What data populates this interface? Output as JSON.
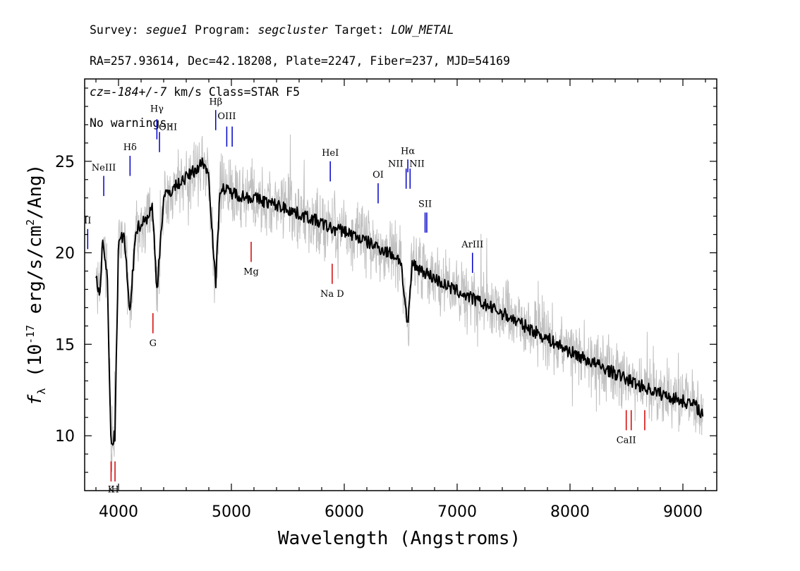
{
  "header": {
    "line1": {
      "survey_label": "Survey: ",
      "survey": "segue1",
      "program_label": " Program: ",
      "program": "segcluster",
      "target_label": " Target: ",
      "target": "LOW_METAL"
    },
    "line2": "RA=257.93614, Dec=42.18208, Plate=2247, Fiber=237, MJD=54169",
    "line3": {
      "cz": "cz=",
      "value": "-184+/-7",
      "rest": " km/s Class=STAR F5"
    },
    "line4": "No warnings."
  },
  "chart_data": {
    "type": "line",
    "xlabel": "Wavelength (Angstroms)",
    "ylabel": "f_λ (10^-17 erg/s/cm²/Ang)",
    "ylabel_parts": {
      "f": "f",
      "sub": "λ",
      "pre": " (10",
      "exp": "-17",
      "mid": " erg/s/cm",
      "exp2": "2",
      "post": "/Ang)"
    },
    "xlim": [
      3700,
      9300
    ],
    "ylim": [
      7,
      29.5
    ],
    "xticks": [
      4000,
      5000,
      6000,
      7000,
      8000,
      9000
    ],
    "yticks": [
      10,
      15,
      20,
      25
    ],
    "series": [
      {
        "style": "smoothed-flux",
        "color": "#000000",
        "x": [
          3800,
          3830,
          3860,
          3900,
          3933,
          3968,
          4000,
          4050,
          4101,
          4150,
          4200,
          4250,
          4300,
          4340,
          4400,
          4450,
          4500,
          4550,
          4600,
          4650,
          4700,
          4750,
          4800,
          4861,
          4900,
          4950,
          5000,
          5100,
          5200,
          5300,
          5400,
          5500,
          5600,
          5700,
          5800,
          5893,
          6000,
          6100,
          6200,
          6300,
          6400,
          6500,
          6563,
          6600,
          6700,
          6800,
          6900,
          7000,
          7200,
          7400,
          7600,
          7800,
          8000,
          8200,
          8400,
          8600,
          8800,
          9000,
          9100,
          9150,
          9180
        ],
        "y": [
          18.9,
          17.5,
          20.5,
          18.8,
          9.5,
          10.0,
          20.5,
          21.0,
          16.5,
          21.2,
          21.6,
          21.9,
          22.5,
          18.0,
          23.0,
          23.3,
          23.6,
          23.9,
          24.1,
          24.4,
          24.6,
          25.0,
          24.2,
          18.2,
          23.6,
          23.4,
          23.3,
          23.1,
          23.0,
          22.8,
          22.6,
          22.4,
          22.1,
          21.9,
          21.6,
          21.3,
          21.2,
          20.9,
          20.6,
          20.3,
          20.0,
          19.6,
          15.8,
          19.4,
          19.0,
          18.6,
          18.2,
          17.9,
          17.3,
          16.7,
          16.0,
          15.3,
          14.6,
          14.0,
          13.4,
          12.8,
          12.3,
          11.9,
          11.7,
          11.4,
          11.1
        ]
      }
    ],
    "lines_blue": [
      {
        "name": "Hγ",
        "x": 4340,
        "y0": 26.2,
        "y1": 27.3,
        "label_y": 27.7,
        "label_side": "center"
      },
      {
        "name": "OIII",
        "x": 4363,
        "y0": 25.5,
        "y1": 26.6,
        "label_y": 26.7,
        "label_side": "right"
      },
      {
        "name": "Hδ",
        "x": 4102,
        "y0": 24.2,
        "y1": 25.3,
        "label_y": 25.6,
        "label_side": "center"
      },
      {
        "name": "NeIII",
        "x": 3869,
        "y0": 23.1,
        "y1": 24.2,
        "label_y": 24.5,
        "label_side": "center"
      },
      {
        "name": "II",
        "x": 3727,
        "y0": 20.2,
        "y1": 21.3,
        "label_y": 21.6,
        "label_side": "center"
      },
      {
        "name": "Hβ",
        "x": 4861,
        "y0": 26.7,
        "y1": 27.8,
        "label_y": 28.1,
        "label_side": "center"
      },
      {
        "name": "OIII",
        "x": 4959,
        "y0": 25.8,
        "y1": 26.9,
        "label_y": 27.3,
        "label_side": "center"
      },
      {
        "name": "",
        "x": 5007,
        "y0": 25.8,
        "y1": 26.9,
        "label_y": 27.3,
        "label_side": "center"
      },
      {
        "name": "HeI",
        "x": 5876,
        "y0": 23.9,
        "y1": 25.0,
        "label_y": 25.3,
        "label_side": "center"
      },
      {
        "name": "OI",
        "x": 6300,
        "y0": 22.7,
        "y1": 23.8,
        "label_y": 24.1,
        "label_side": "center"
      },
      {
        "name": "NII",
        "x": 6548,
        "y0": 23.5,
        "y1": 24.6,
        "label_y": 24.7,
        "label_side": "left"
      },
      {
        "name": "Hα",
        "x": 6563,
        "y0": 24.4,
        "y1": 25.1,
        "label_y": 25.4,
        "label_side": "center"
      },
      {
        "name": "NII",
        "x": 6583,
        "y0": 23.5,
        "y1": 24.6,
        "label_y": 24.7,
        "label_side": "right"
      },
      {
        "name": "SII",
        "x": 6716,
        "y0": 21.1,
        "y1": 22.2,
        "label_y": 22.5,
        "label_side": "center"
      },
      {
        "name": "",
        "x": 6731,
        "y0": 21.1,
        "y1": 22.2,
        "label_y": 22.5,
        "label_side": "center"
      },
      {
        "name": "ArIII",
        "x": 7136,
        "y0": 18.9,
        "y1": 20.0,
        "label_y": 20.3,
        "label_side": "center"
      }
    ],
    "lines_red": [
      {
        "name": "K",
        "x": 3934,
        "y0": 7.5,
        "y1": 8.6,
        "label_y": 6.9,
        "label_side": "center"
      },
      {
        "name": "H",
        "x": 3969,
        "y0": 7.5,
        "y1": 8.6,
        "label_y": 6.9,
        "label_side": "center"
      },
      {
        "name": "G",
        "x": 4305,
        "y0": 15.6,
        "y1": 16.7,
        "label_y": 14.9,
        "label_side": "center"
      },
      {
        "name": "Mg",
        "x": 5175,
        "y0": 19.5,
        "y1": 20.6,
        "label_y": 18.8,
        "label_side": "center"
      },
      {
        "name": "Na D",
        "x": 5893,
        "y0": 18.3,
        "y1": 19.4,
        "label_y": 17.6,
        "label_side": "center"
      },
      {
        "name": "CaII",
        "x": 8498,
        "y0": 10.3,
        "y1": 11.4,
        "label_y": 9.6,
        "label_side": "center"
      },
      {
        "name": "",
        "x": 8542,
        "y0": 10.3,
        "y1": 11.4,
        "label_y": 9.6,
        "label_side": "center"
      },
      {
        "name": "",
        "x": 8662,
        "y0": 10.3,
        "y1": 11.4,
        "label_y": 9.6,
        "label_side": "center"
      }
    ],
    "colors": {
      "flux": "#000000",
      "noise": "#c0c0c0",
      "emission": "#0000c8",
      "absorption": "#d40000"
    }
  }
}
